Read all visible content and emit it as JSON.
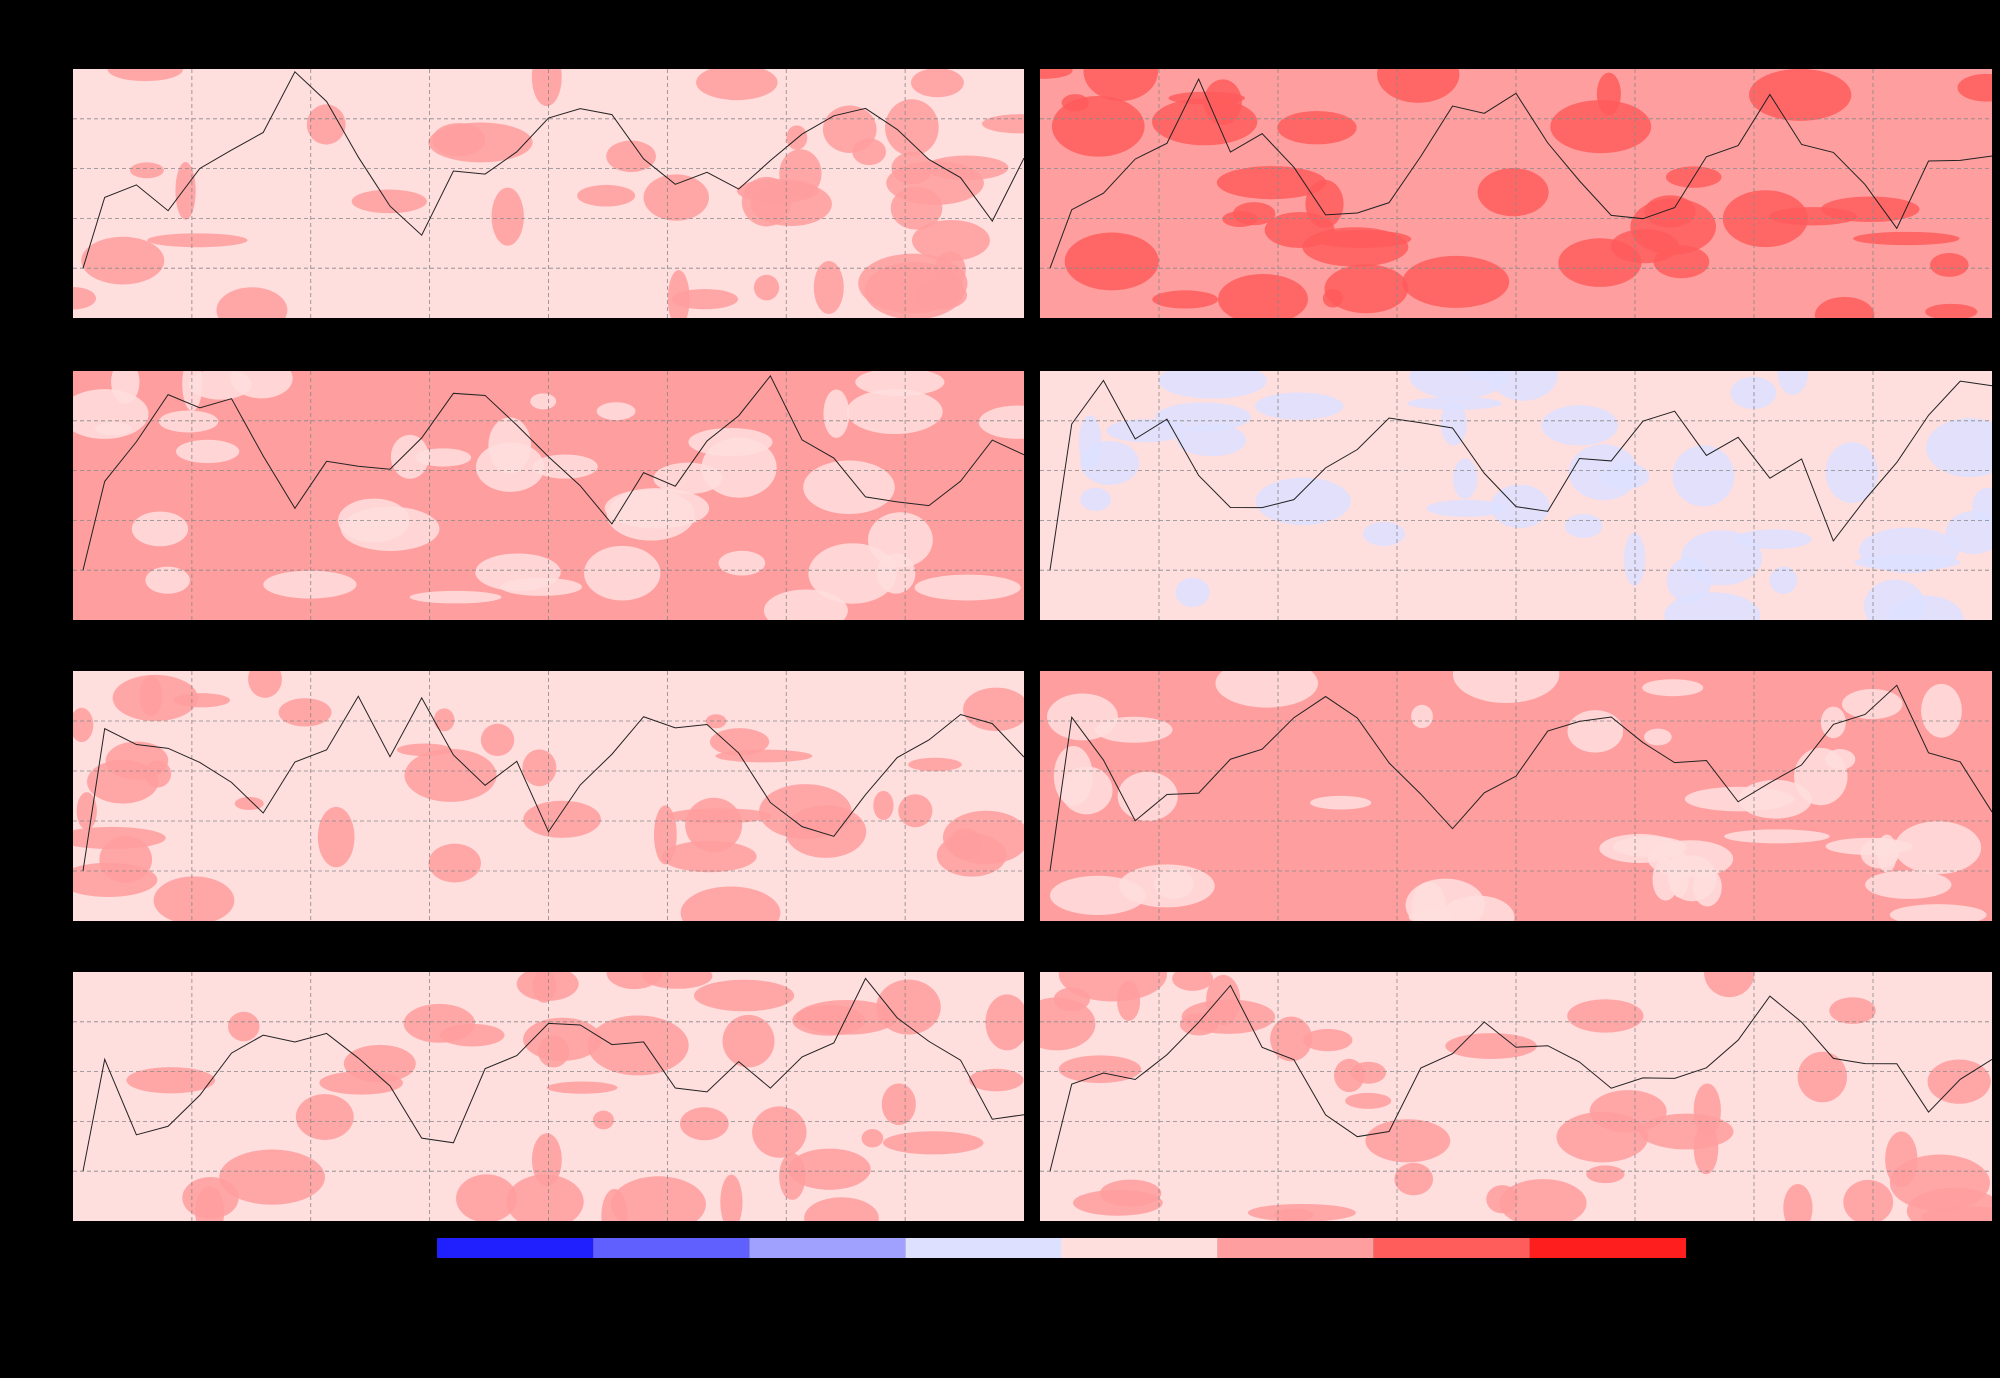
{
  "panels": [
    {
      "fill": "#ffdede",
      "accent": "#ff9e9e"
    },
    {
      "fill": "#ff9e9e",
      "accent": "#ff5c5c"
    },
    {
      "fill": "#ff9e9e",
      "accent": "#ffdede"
    },
    {
      "fill": "#ffdede",
      "accent": "#dde0ff"
    },
    {
      "fill": "#ffdede",
      "accent": "#ff9e9e"
    },
    {
      "fill": "#ff9e9e",
      "accent": "#ffdede"
    },
    {
      "fill": "#ffdede",
      "accent": "#ff9e9e"
    },
    {
      "fill": "#ffdede",
      "accent": "#ff9e9e"
    }
  ],
  "colorbar": {
    "colors": [
      "#2020ff",
      "#6060ff",
      "#a0a0ff",
      "#dde0ff",
      "#ffdede",
      "#ff9e9e",
      "#ff5c5c",
      "#ff1e1e"
    ]
  }
}
